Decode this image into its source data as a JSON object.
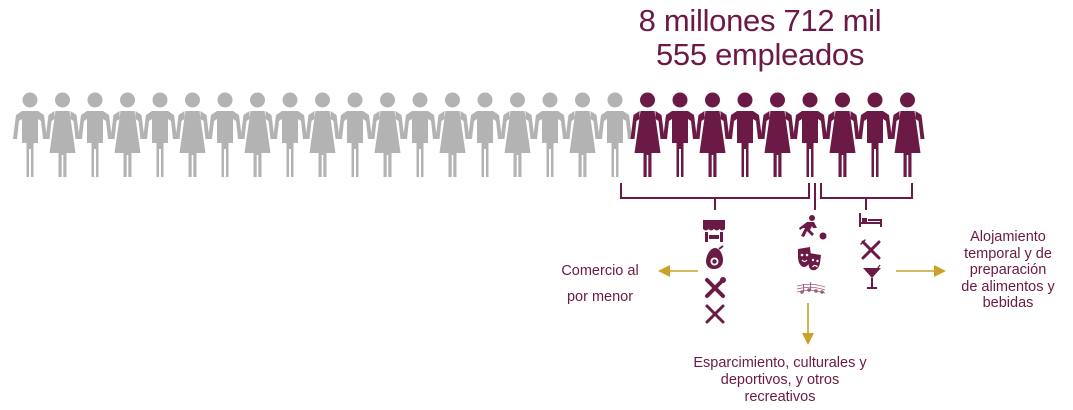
{
  "headline": {
    "line1": "8 millones 712 mil",
    "line2": "555 empleados"
  },
  "figures": {
    "total": 28,
    "highlighted": 9,
    "gray_color": "#b3b3b3",
    "highlight_color": "#6b1a45"
  },
  "colors": {
    "brand": "#6b1a45",
    "arrow": "#c9a227",
    "bracket": "#6b1a45"
  },
  "categories": {
    "comercio": {
      "label_line1": "Comercio al",
      "label_line2": "por menor",
      "icons": [
        "market-stall-icon",
        "avocado-icon",
        "tools-icon",
        "utensils-icon"
      ]
    },
    "esparcimiento": {
      "label_line1": "Esparcimiento, culturales y",
      "label_line2": "deportivos, y otros",
      "label_line3": "recreativos",
      "icons": [
        "runner-ball-icon",
        "theater-masks-icon",
        "music-notes-icon"
      ]
    },
    "alojamiento": {
      "label_line1": "Alojamiento",
      "label_line2": "temporal y de",
      "label_line3": "preparación",
      "label_line4": "de alimentos y",
      "label_line5": "bebidas",
      "icons": [
        "bed-icon",
        "fork-knife-icon",
        "cocktail-icon"
      ]
    }
  }
}
